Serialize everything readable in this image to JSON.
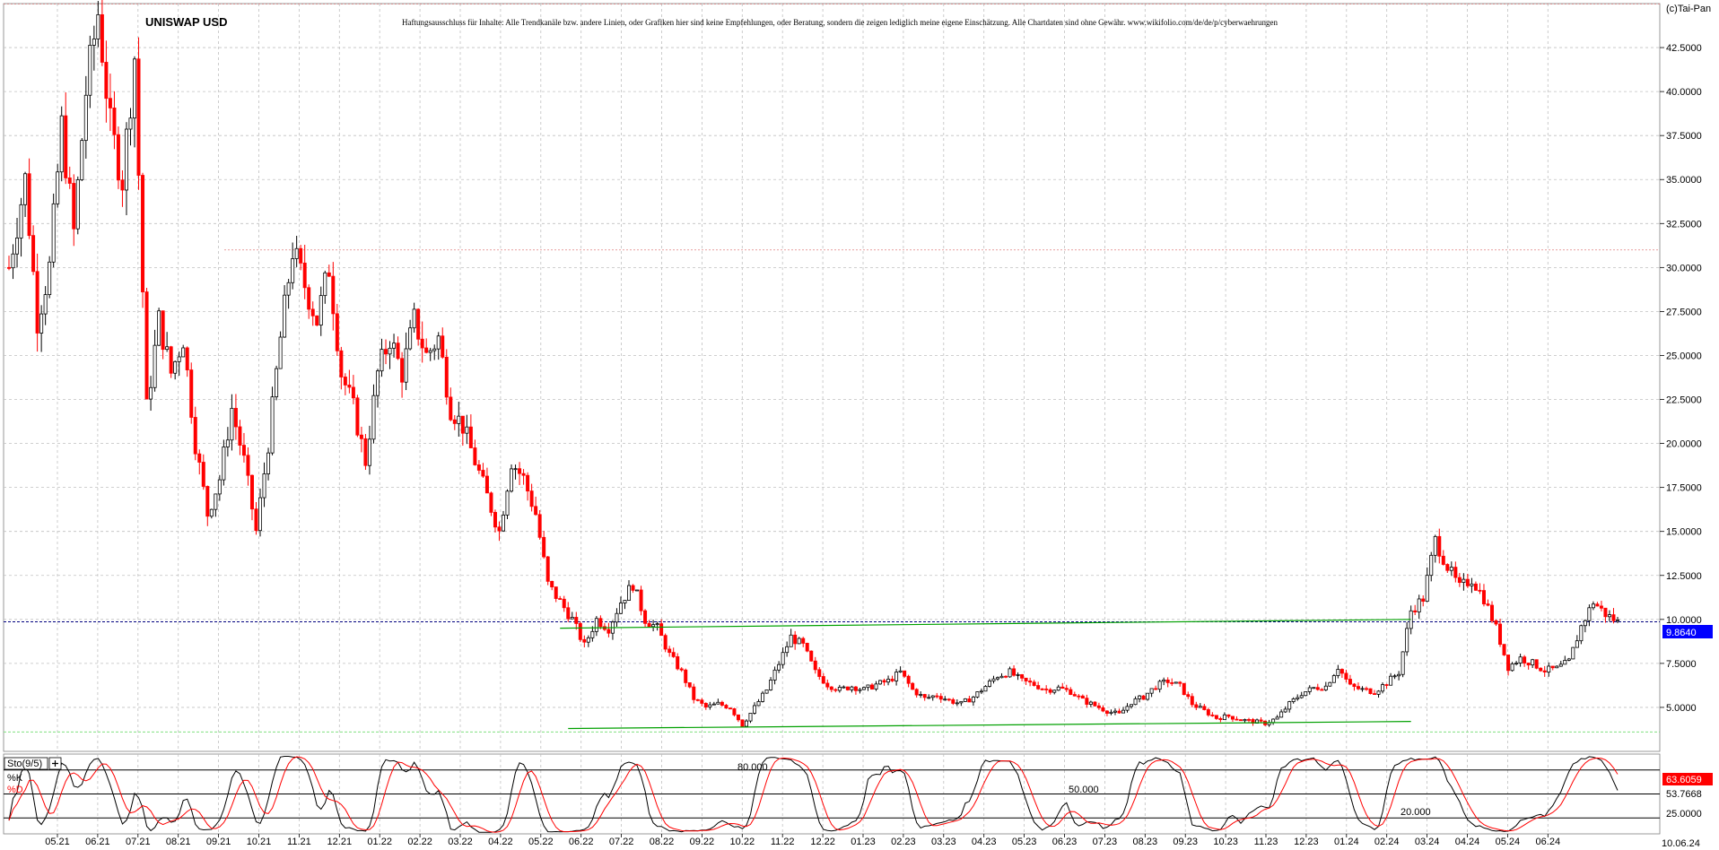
{
  "chart_data": {
    "type": "candlestick",
    "title": "UNISWAP USD",
    "copyright": "(c)Tai-Pan",
    "disclaimer": "Haftungsausschluss für Inhalte: Alle Trendkanäle bzw. andere Linien, oder Grafiken hier sind keine Empfehlungen, oder Beratung, sondern die zeigen lediglich meine eigene Einschätzung. Alle Chartdaten sind ohne Gewähr. www.wikifolio.com/de/de/p/cyberwaehrungen",
    "ylim": [
      2.5,
      45.0
    ],
    "y_ticks": [
      "5.0000",
      "7.5000",
      "10.0000",
      "12.5000",
      "15.0000",
      "17.5000",
      "20.0000",
      "22.5000",
      "25.0000",
      "27.5000",
      "30.0000",
      "32.5000",
      "35.0000",
      "37.5000",
      "40.0000",
      "42.5000"
    ],
    "x_ticks": [
      "05.21",
      "06.21",
      "07.21",
      "08.21",
      "09.21",
      "10.21",
      "11.21",
      "12.21",
      "01.22",
      "02.22",
      "03.22",
      "04.22",
      "05.22",
      "06.22",
      "07.22",
      "08.22",
      "09.22",
      "10.22",
      "11.22",
      "12.22",
      "01.23",
      "02.23",
      "03.23",
      "04.23",
      "05.23",
      "06.23",
      "07.23",
      "08.23",
      "09.23",
      "10.23",
      "11.23",
      "12.23",
      "01.24",
      "02.24",
      "03.24",
      "04.24",
      "05.24",
      "06.24"
    ],
    "last_date": "10.06.24",
    "last_price": "9.8640",
    "price_path": [
      [
        0,
        30
      ],
      [
        4,
        35
      ],
      [
        7,
        27
      ],
      [
        10,
        30
      ],
      [
        13,
        38
      ],
      [
        16,
        32
      ],
      [
        19,
        40
      ],
      [
        22,
        44.5
      ],
      [
        25,
        38
      ],
      [
        28,
        35
      ],
      [
        31,
        42
      ],
      [
        34,
        22
      ],
      [
        37,
        27
      ],
      [
        40,
        24
      ],
      [
        43,
        26
      ],
      [
        46,
        20
      ],
      [
        49,
        16
      ],
      [
        52,
        18
      ],
      [
        55,
        22
      ],
      [
        58,
        19
      ],
      [
        61,
        15
      ],
      [
        64,
        20
      ],
      [
        67,
        26
      ],
      [
        70,
        31
      ],
      [
        73,
        29
      ],
      [
        76,
        27
      ],
      [
        79,
        30
      ],
      [
        82,
        24
      ],
      [
        85,
        22
      ],
      [
        88,
        19
      ],
      [
        91,
        24
      ],
      [
        94,
        26
      ],
      [
        97,
        24
      ],
      [
        100,
        27
      ],
      [
        103,
        25
      ],
      [
        106,
        26
      ],
      [
        109,
        22
      ],
      [
        112,
        21
      ],
      [
        115,
        19
      ],
      [
        118,
        17
      ],
      [
        121,
        15
      ],
      [
        124,
        19
      ],
      [
        127,
        18
      ],
      [
        130,
        16
      ],
      [
        133,
        12
      ],
      [
        136,
        11
      ],
      [
        139,
        10
      ],
      [
        142,
        8.5
      ],
      [
        145,
        10
      ],
      [
        148,
        9.5
      ],
      [
        151,
        11
      ],
      [
        154,
        12
      ],
      [
        157,
        10
      ],
      [
        160,
        9.5
      ],
      [
        163,
        8
      ],
      [
        166,
        7
      ],
      [
        169,
        5.5
      ],
      [
        172,
        5
      ],
      [
        175,
        5.2
      ],
      [
        178,
        5
      ],
      [
        181,
        4
      ],
      [
        184,
        5
      ],
      [
        187,
        6
      ],
      [
        190,
        7.5
      ],
      [
        193,
        9
      ],
      [
        196,
        8.5
      ],
      [
        199,
        7
      ],
      [
        202,
        6.3
      ],
      [
        205,
        6
      ],
      [
        208,
        6.2
      ],
      [
        211,
        6
      ],
      [
        214,
        6.3
      ],
      [
        217,
        6.5
      ],
      [
        220,
        7
      ],
      [
        223,
        6
      ],
      [
        226,
        5.5
      ],
      [
        229,
        5.7
      ],
      [
        232,
        5.4
      ],
      [
        235,
        5.2
      ],
      [
        238,
        5.6
      ],
      [
        241,
        6.2
      ],
      [
        244,
        6.8
      ],
      [
        247,
        7
      ],
      [
        250,
        6.5
      ],
      [
        253,
        6.3
      ],
      [
        256,
        6
      ],
      [
        259,
        6.1
      ],
      [
        262,
        5.9
      ],
      [
        265,
        5.4
      ],
      [
        268,
        5.1
      ],
      [
        271,
        4.8
      ],
      [
        274,
        4.6
      ],
      [
        277,
        5.3
      ],
      [
        280,
        5.6
      ],
      [
        283,
        6.2
      ],
      [
        286,
        6.5
      ],
      [
        289,
        6.2
      ],
      [
        292,
        5.2
      ],
      [
        295,
        4.8
      ],
      [
        298,
        4.4
      ],
      [
        301,
        4.5
      ],
      [
        304,
        4.3
      ],
      [
        307,
        4.2
      ],
      [
        310,
        4.1
      ],
      [
        313,
        4.4
      ],
      [
        316,
        5.2
      ],
      [
        319,
        5.8
      ],
      [
        322,
        6.1
      ],
      [
        325,
        6.2
      ],
      [
        328,
        7.3
      ],
      [
        331,
        6.2
      ],
      [
        334,
        6
      ],
      [
        337,
        5.9
      ],
      [
        340,
        6.4
      ],
      [
        343,
        7
      ],
      [
        346,
        10.5
      ],
      [
        349,
        11.2
      ],
      [
        352,
        14.5
      ],
      [
        355,
        13
      ],
      [
        358,
        11.8
      ],
      [
        361,
        12.3
      ],
      [
        364,
        11.2
      ],
      [
        367,
        9.5
      ],
      [
        370,
        7.3
      ],
      [
        373,
        7.8
      ],
      [
        376,
        7.5
      ],
      [
        379,
        7.1
      ],
      [
        382,
        7.2
      ],
      [
        385,
        7.6
      ],
      [
        388,
        9.6
      ],
      [
        391,
        11
      ],
      [
        394,
        10.3
      ],
      [
        397,
        9.86
      ]
    ],
    "trendlines": [
      {
        "from": [
          136,
          9.5
        ],
        "to": [
          346,
          10.0
        ]
      },
      {
        "from": [
          138,
          3.8
        ],
        "to": [
          346,
          4.2
        ]
      }
    ],
    "h_levels": [
      31.0,
      9.864,
      3.6
    ],
    "stochastic": {
      "label": "Sto(9/5)",
      "k_label": "%K",
      "d_label": "%D",
      "k_value": "63.6059",
      "d_value": "53.7668",
      "levels": [
        "80.000",
        "50.000",
        "20.000"
      ],
      "axis_tick": "25.0000"
    },
    "colors": {
      "up": "#000000",
      "down": "#ff0000",
      "grid": "#c0c0c0",
      "trend": "#00a000",
      "level": "#000080",
      "k": "#000000",
      "d": "#ff0000"
    }
  }
}
